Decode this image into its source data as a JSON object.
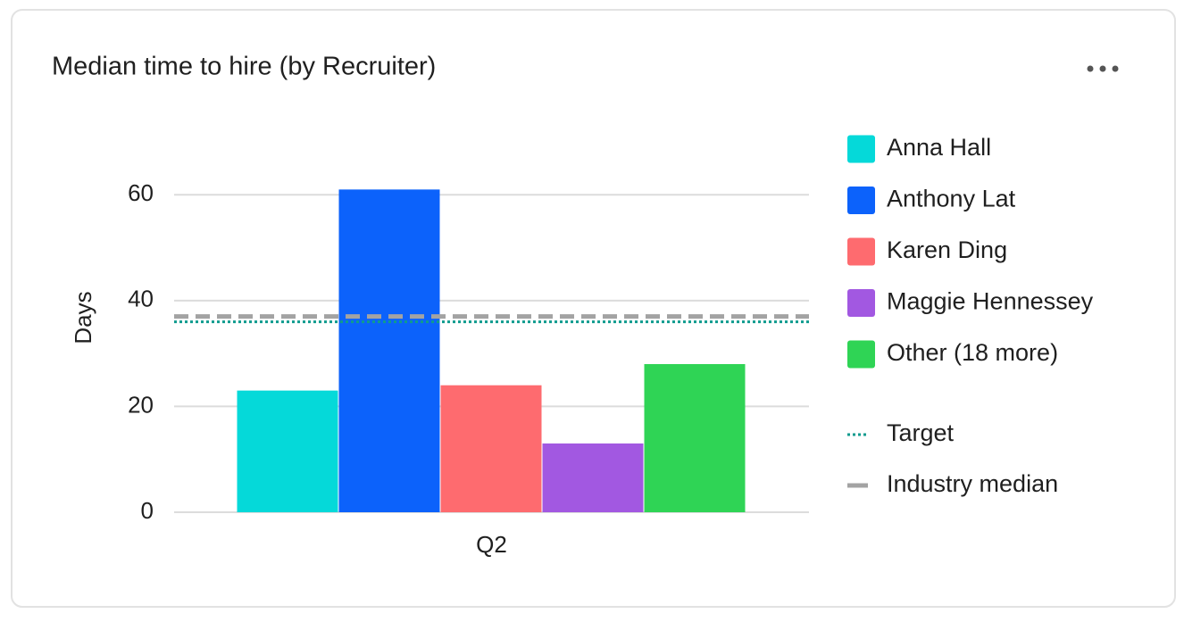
{
  "chart_data": {
    "type": "bar",
    "title": "Median time to hire (by Recruiter)",
    "y_label": "Days",
    "categories": [
      "Q2"
    ],
    "series": [
      {
        "name": "Anna Hall",
        "color": "#05d9d9",
        "values": [
          23
        ]
      },
      {
        "name": "Anthony Lat",
        "color": "#0c62fb",
        "values": [
          61
        ]
      },
      {
        "name": "Karen Ding",
        "color": "#fe6b6f",
        "values": [
          24
        ]
      },
      {
        "name": "Maggie Hennessey",
        "color": "#a258e1",
        "values": [
          13
        ]
      },
      {
        "name": "Other (18 more)",
        "color": "#2fd455",
        "values": [
          28
        ]
      }
    ],
    "reference_lines": [
      {
        "name": "Target",
        "value": 36,
        "color": "#0f9b8e",
        "style": "dotted"
      },
      {
        "name": "Industry median",
        "value": 37,
        "color": "#a3a3a3",
        "style": "dashed"
      }
    ],
    "ylim": [
      0,
      70
    ],
    "yticks": [
      0,
      20,
      40,
      60
    ],
    "grid": true,
    "legend": "right"
  }
}
